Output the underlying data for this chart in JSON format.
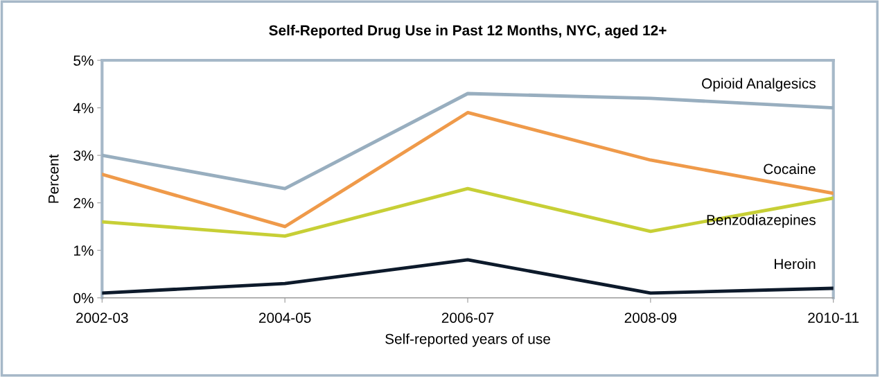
{
  "chart_data": {
    "type": "line",
    "title": "Self-Reported Drug Use in Past 12 Months, NYC, aged 12+",
    "xlabel": "Self-reported years of use",
    "ylabel": "Percent",
    "categories": [
      "2002-03",
      "2004-05",
      "2006-07",
      "2008-09",
      "2010-11"
    ],
    "series": [
      {
        "name": "Opioid Analgesics",
        "color": "#98aebf",
        "values": [
          3.0,
          2.3,
          4.3,
          4.2,
          4.0
        ]
      },
      {
        "name": "Cocaine",
        "color": "#ef9a4a",
        "values": [
          2.6,
          1.5,
          3.9,
          2.9,
          2.2
        ]
      },
      {
        "name": "Benzodiazepines",
        "color": "#c7cf36",
        "values": [
          1.6,
          1.3,
          2.3,
          1.4,
          2.1
        ]
      },
      {
        "name": "Heroin",
        "color": "#0d1a2b",
        "values": [
          0.1,
          0.3,
          0.8,
          0.1,
          0.2
        ]
      }
    ],
    "ylim": [
      0,
      5
    ],
    "yticks": [
      {
        "value": 0,
        "label": "0%"
      },
      {
        "value": 1,
        "label": "1%"
      },
      {
        "value": 2,
        "label": "2%"
      },
      {
        "value": 3,
        "label": "3%"
      },
      {
        "value": 4,
        "label": "4%"
      },
      {
        "value": 5,
        "label": "5%"
      }
    ],
    "grid": false,
    "legend": false,
    "marker": "none",
    "line_style": "solid"
  }
}
